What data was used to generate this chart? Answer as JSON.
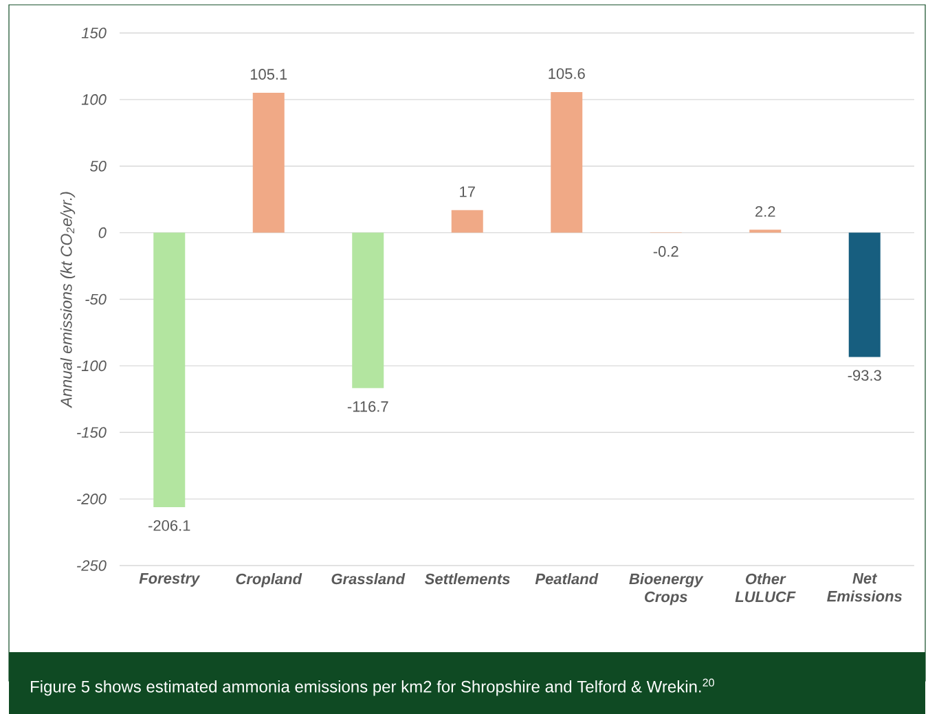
{
  "chart_data": {
    "type": "bar",
    "ylabel": "Annual emissions (kt CO$_{2}$e/yr.)",
    "categories": [
      "Forestry",
      "Cropland",
      "Grassland",
      "Settlements",
      "Peatland",
      "Bioenergy Crops",
      "Other LULUCF",
      "Net Emissions"
    ],
    "values": [
      -206.1,
      105.1,
      -116.7,
      17,
      105.6,
      -0.2,
      2.2,
      -93.3
    ],
    "colors": [
      "#b3e5a0",
      "#f0a986",
      "#b3e5a0",
      "#f0a986",
      "#f0a986",
      "#f0a986",
      "#f0a986",
      "#175e7f"
    ],
    "ylim": [
      -250,
      150
    ],
    "yticks": [
      -250,
      -200,
      -150,
      -100,
      -50,
      0,
      50,
      100,
      150
    ],
    "grid": "y",
    "data_labels": true,
    "annotations": [
      "Figure 5 shows estimated ammonia emissions per km2 for Shropshire and Telford & Wrekin.$^{20}$"
    ]
  }
}
